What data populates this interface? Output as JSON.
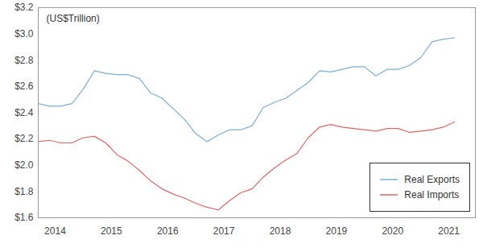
{
  "chart_data": {
    "type": "line",
    "ylabel": "(US$Trillion)",
    "x": [
      2013.7,
      2013.9,
      2014.1,
      2014.3,
      2014.5,
      2014.7,
      2014.9,
      2015.1,
      2015.3,
      2015.5,
      2015.7,
      2015.9,
      2016.1,
      2016.3,
      2016.5,
      2016.7,
      2016.9,
      2017.1,
      2017.3,
      2017.5,
      2017.7,
      2017.9,
      2018.1,
      2018.3,
      2018.5,
      2018.7,
      2018.9,
      2019.1,
      2019.3,
      2019.5,
      2019.7,
      2019.9,
      2020.1,
      2020.3,
      2020.5,
      2020.7,
      2020.9,
      2021.1
    ],
    "series": [
      {
        "name": "Real Exports",
        "color": "#7bafd4",
        "values": [
          2.47,
          2.45,
          2.45,
          2.47,
          2.58,
          2.72,
          2.7,
          2.69,
          2.69,
          2.66,
          2.55,
          2.51,
          2.43,
          2.35,
          2.24,
          2.18,
          2.23,
          2.27,
          2.27,
          2.3,
          2.44,
          2.48,
          2.51,
          2.57,
          2.63,
          2.72,
          2.71,
          2.73,
          2.75,
          2.75,
          2.68,
          2.73,
          2.73,
          2.76,
          2.82,
          2.94,
          2.96,
          2.97
        ]
      },
      {
        "name": "Real Imports",
        "color": "#e06666",
        "values": [
          2.18,
          2.19,
          2.17,
          2.17,
          2.21,
          2.22,
          2.17,
          2.08,
          2.03,
          1.96,
          1.88,
          1.82,
          1.78,
          1.75,
          1.71,
          1.68,
          1.66,
          1.73,
          1.79,
          1.82,
          1.91,
          1.98,
          2.04,
          2.09,
          2.21,
          2.29,
          2.31,
          2.29,
          2.28,
          2.27,
          2.26,
          2.28,
          2.28,
          2.25,
          2.26,
          2.27,
          2.29,
          2.33
        ]
      }
    ],
    "xlim": [
      2013.7,
      2021.47
    ],
    "xticks": [
      2014,
      2015,
      2016,
      2017,
      2018,
      2019,
      2020,
      2021
    ],
    "ylim": [
      1.6,
      3.2
    ],
    "yticks": [
      {
        "value": 1.6,
        "label": "$1.6"
      },
      {
        "value": 1.8,
        "label": "$1.8"
      },
      {
        "value": 2.0,
        "label": "$2.0"
      },
      {
        "value": 2.2,
        "label": "$2.2"
      },
      {
        "value": 2.4,
        "label": "$2.4"
      },
      {
        "value": 2.6,
        "label": "$2.6"
      },
      {
        "value": 2.8,
        "label": "$2.8"
      },
      {
        "value": 3.0,
        "label": "$3.0"
      },
      {
        "value": 3.2,
        "label": "$3.2"
      }
    ],
    "grid": false,
    "legend": "bottom-right"
  }
}
